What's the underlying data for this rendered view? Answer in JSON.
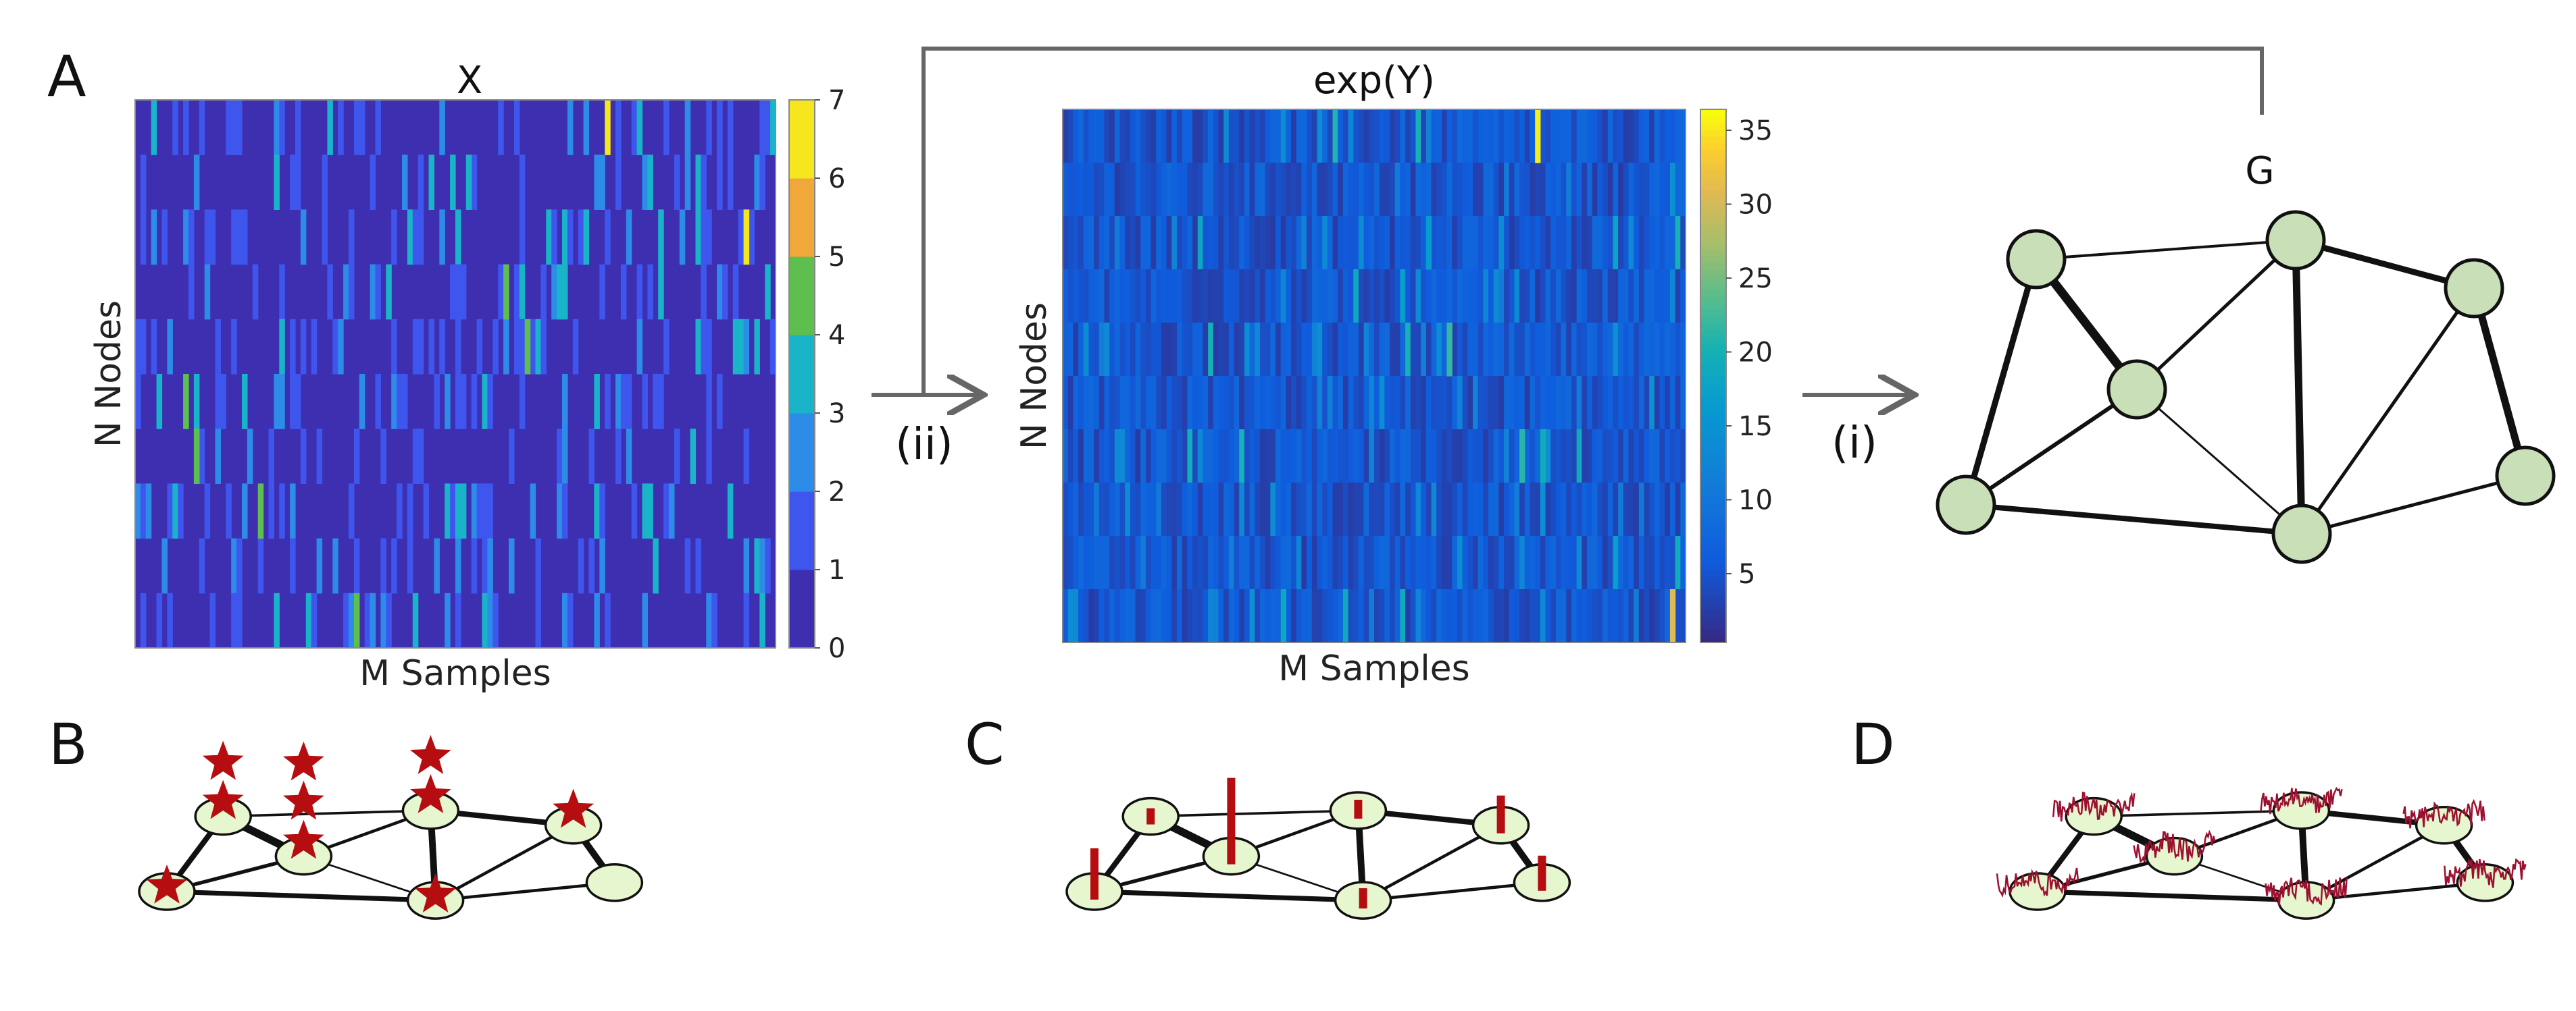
{
  "panels": {
    "a": "A",
    "b": "B",
    "c": "C",
    "d": "D"
  },
  "heatmap_x": {
    "title": "X",
    "xlabel": "M Samples",
    "ylabel": "N Nodes",
    "colorbar_ticks": [
      "0",
      "1",
      "2",
      "3",
      "4",
      "5",
      "6",
      "7"
    ],
    "colors": [
      "#3d2fb0",
      "#3f56ee",
      "#2d8ce8",
      "#1ab4c8",
      "#5fbf4e",
      "#f0a83a",
      "#f5e61e"
    ]
  },
  "heatmap_y": {
    "title": "exp(Y)",
    "xlabel": "M Samples",
    "ylabel": "N Nodes",
    "colorbar_ticks": [
      "5",
      "10",
      "15",
      "20",
      "25",
      "30",
      "35"
    ]
  },
  "steps": {
    "ii": "(ii)",
    "i": "(i)"
  },
  "graph": {
    "label": "G",
    "node_color": "#c9dfb8",
    "small_node_color": "#e6f7d0",
    "marker_color": "#b50d10",
    "noise_color": "#9c1030"
  }
}
